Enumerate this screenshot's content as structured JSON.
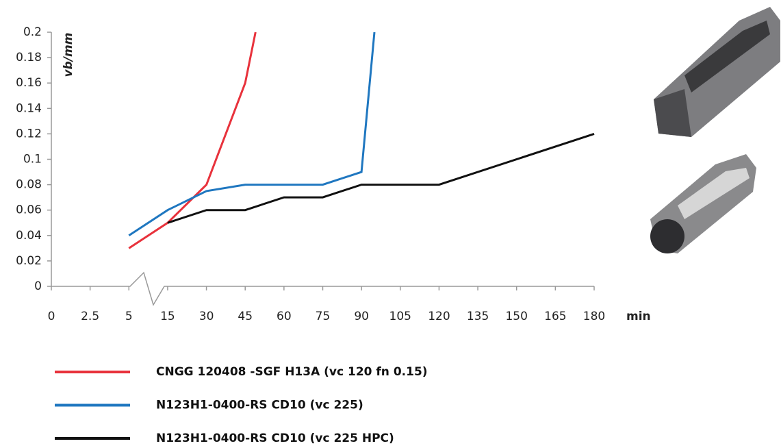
{
  "chart_data": {
    "type": "line",
    "y_label": "vb/mm",
    "x_label": "min",
    "ylim": [
      0,
      0.2
    ],
    "yticks": [
      0,
      0.02,
      0.04,
      0.06,
      0.08,
      0.1,
      0.12,
      0.14,
      0.16,
      0.18,
      0.2
    ],
    "xlim": [
      0,
      180
    ],
    "xticks": [
      0,
      2.5,
      5,
      15,
      30,
      45,
      60,
      75,
      90,
      105,
      120,
      135,
      150,
      165,
      180
    ],
    "series": [
      {
        "name": "CNGG 120408 -SGF H13A (vc 120 fn 0.15)",
        "color": "#e8323c",
        "x": [
          5,
          15,
          30,
          45,
          49
        ],
        "values": [
          0.03,
          0.05,
          0.08,
          0.16,
          0.2
        ]
      },
      {
        "name": "N123H1-0400-RS CD10 (vc 225)",
        "color": "#1f77c0",
        "x": [
          5,
          15,
          30,
          45,
          75,
          90,
          95
        ],
        "values": [
          0.04,
          0.06,
          0.075,
          0.08,
          0.08,
          0.09,
          0.2
        ]
      },
      {
        "name": "N123H1-0400-RS CD10 (vc 225 HPC)",
        "color": "#111111",
        "x": [
          15,
          30,
          45,
          60,
          75,
          90,
          120,
          180
        ],
        "values": [
          0.05,
          0.06,
          0.06,
          0.07,
          0.07,
          0.08,
          0.08,
          0.12
        ]
      }
    ]
  }
}
